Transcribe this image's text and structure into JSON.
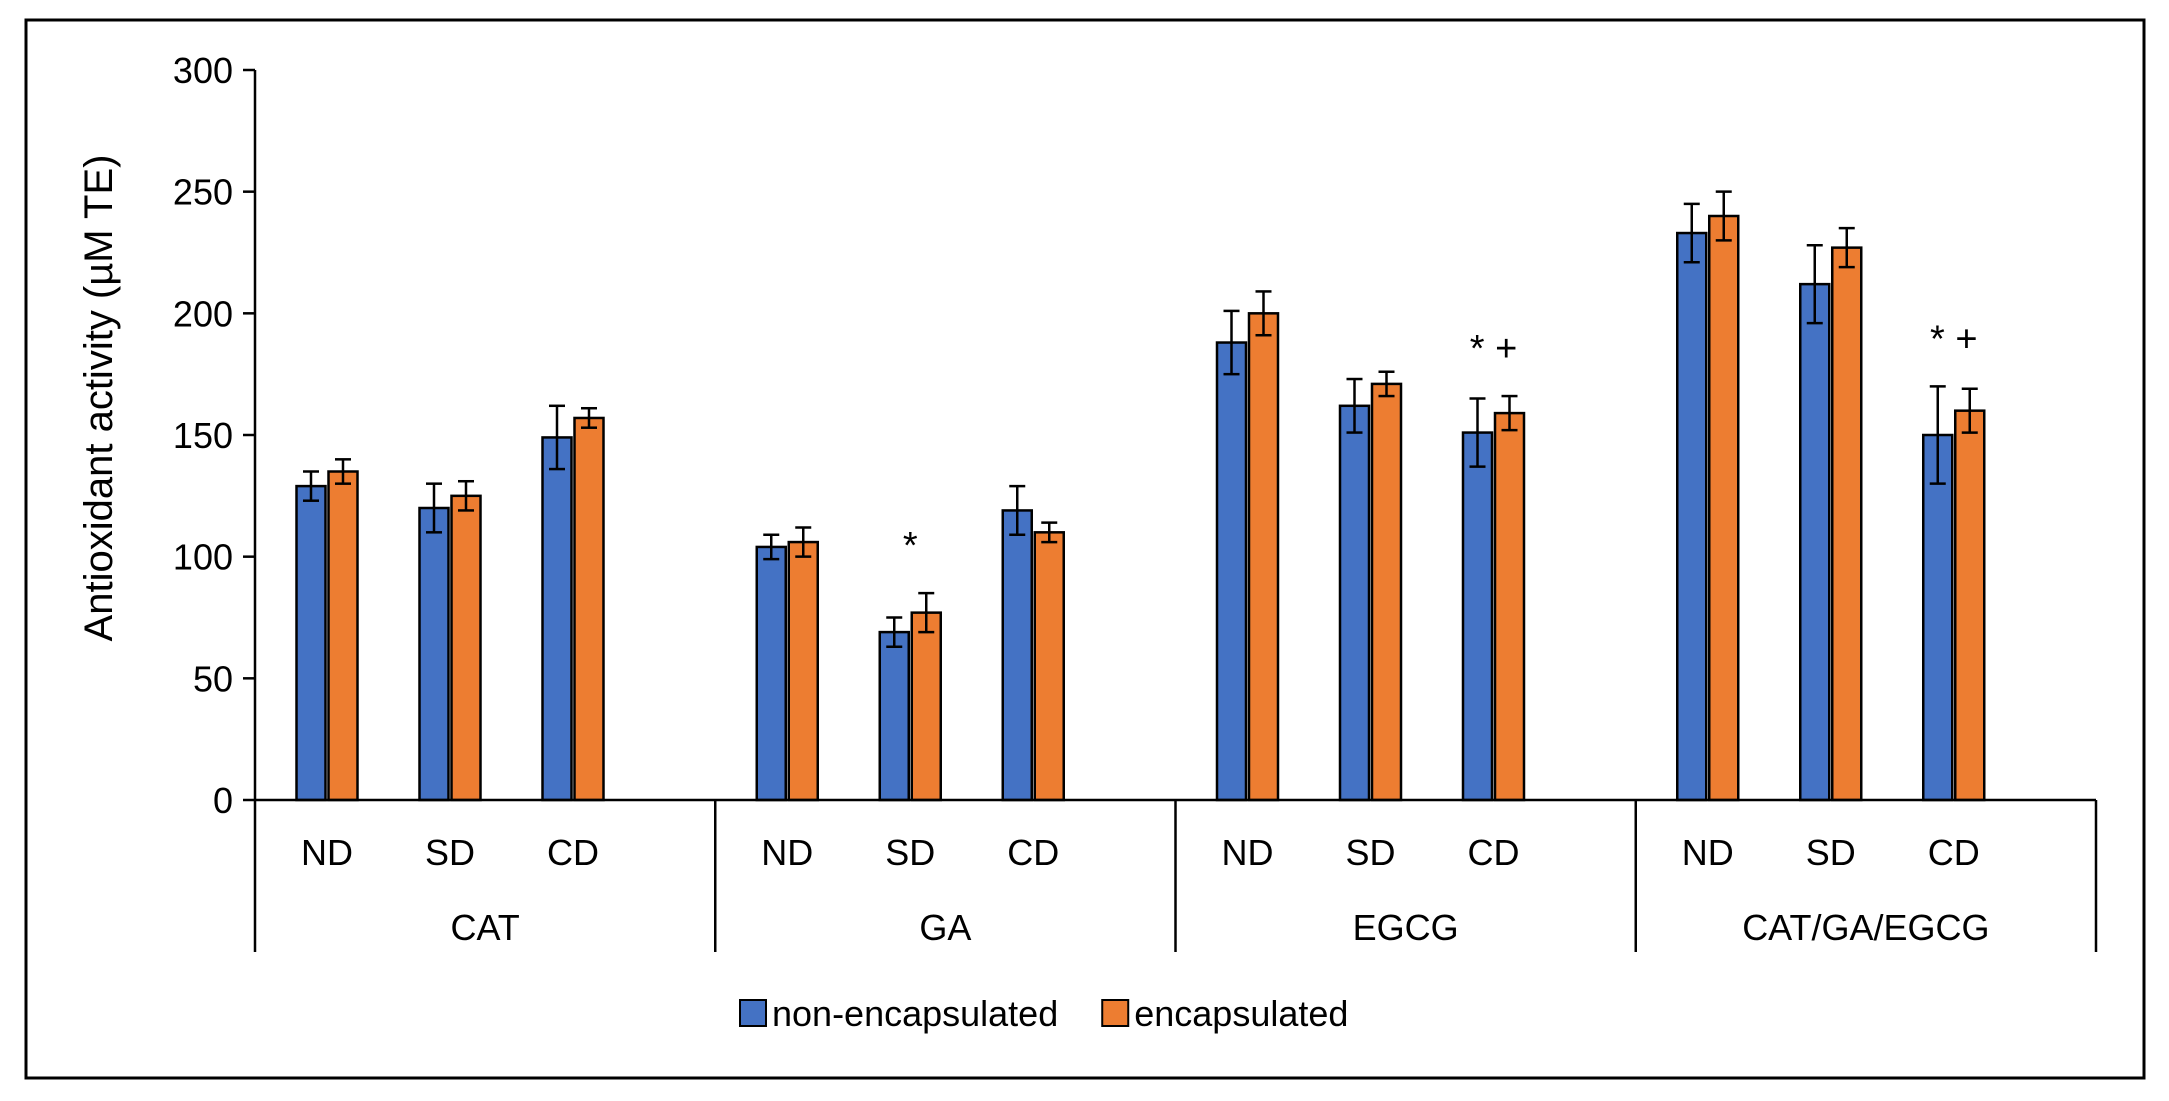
{
  "chart_data": {
    "type": "bar",
    "title": "",
    "xlabel": "",
    "ylabel": "Antioxidant activity (µM TE)",
    "ylim": [
      0,
      300
    ],
    "yticks": [
      0,
      50,
      100,
      150,
      200,
      250,
      300
    ],
    "grid": false,
    "legend_position": "bottom-center",
    "groups": [
      {
        "label": "CAT",
        "categories": [
          "ND",
          "SD",
          "CD"
        ]
      },
      {
        "label": "GA",
        "categories": [
          "ND",
          "SD",
          "CD"
        ]
      },
      {
        "label": "EGCG",
        "categories": [
          "ND",
          "SD",
          "CD"
        ]
      },
      {
        "label": "CAT/GA/EGCG",
        "categories": [
          "ND",
          "SD",
          "CD"
        ]
      }
    ],
    "series": [
      {
        "name": "non-encapsulated",
        "color": "#4472C4",
        "values": [
          129,
          120,
          149,
          104,
          69,
          119,
          188,
          162,
          151,
          233,
          212,
          150
        ],
        "errors": [
          6,
          10,
          13,
          5,
          6,
          10,
          13,
          11,
          14,
          12,
          16,
          20
        ]
      },
      {
        "name": "encapsulated",
        "color": "#ED7D31",
        "values": [
          135,
          125,
          157,
          106,
          77,
          110,
          200,
          171,
          159,
          240,
          227,
          160
        ],
        "errors": [
          5,
          6,
          4,
          6,
          8,
          4,
          9,
          5,
          7,
          10,
          8,
          9
        ]
      }
    ],
    "annotations": [
      {
        "category_index": 4,
        "text": "*"
      },
      {
        "category_index": 8,
        "text": "* +"
      },
      {
        "category_index": 11,
        "text": "* +"
      }
    ]
  }
}
